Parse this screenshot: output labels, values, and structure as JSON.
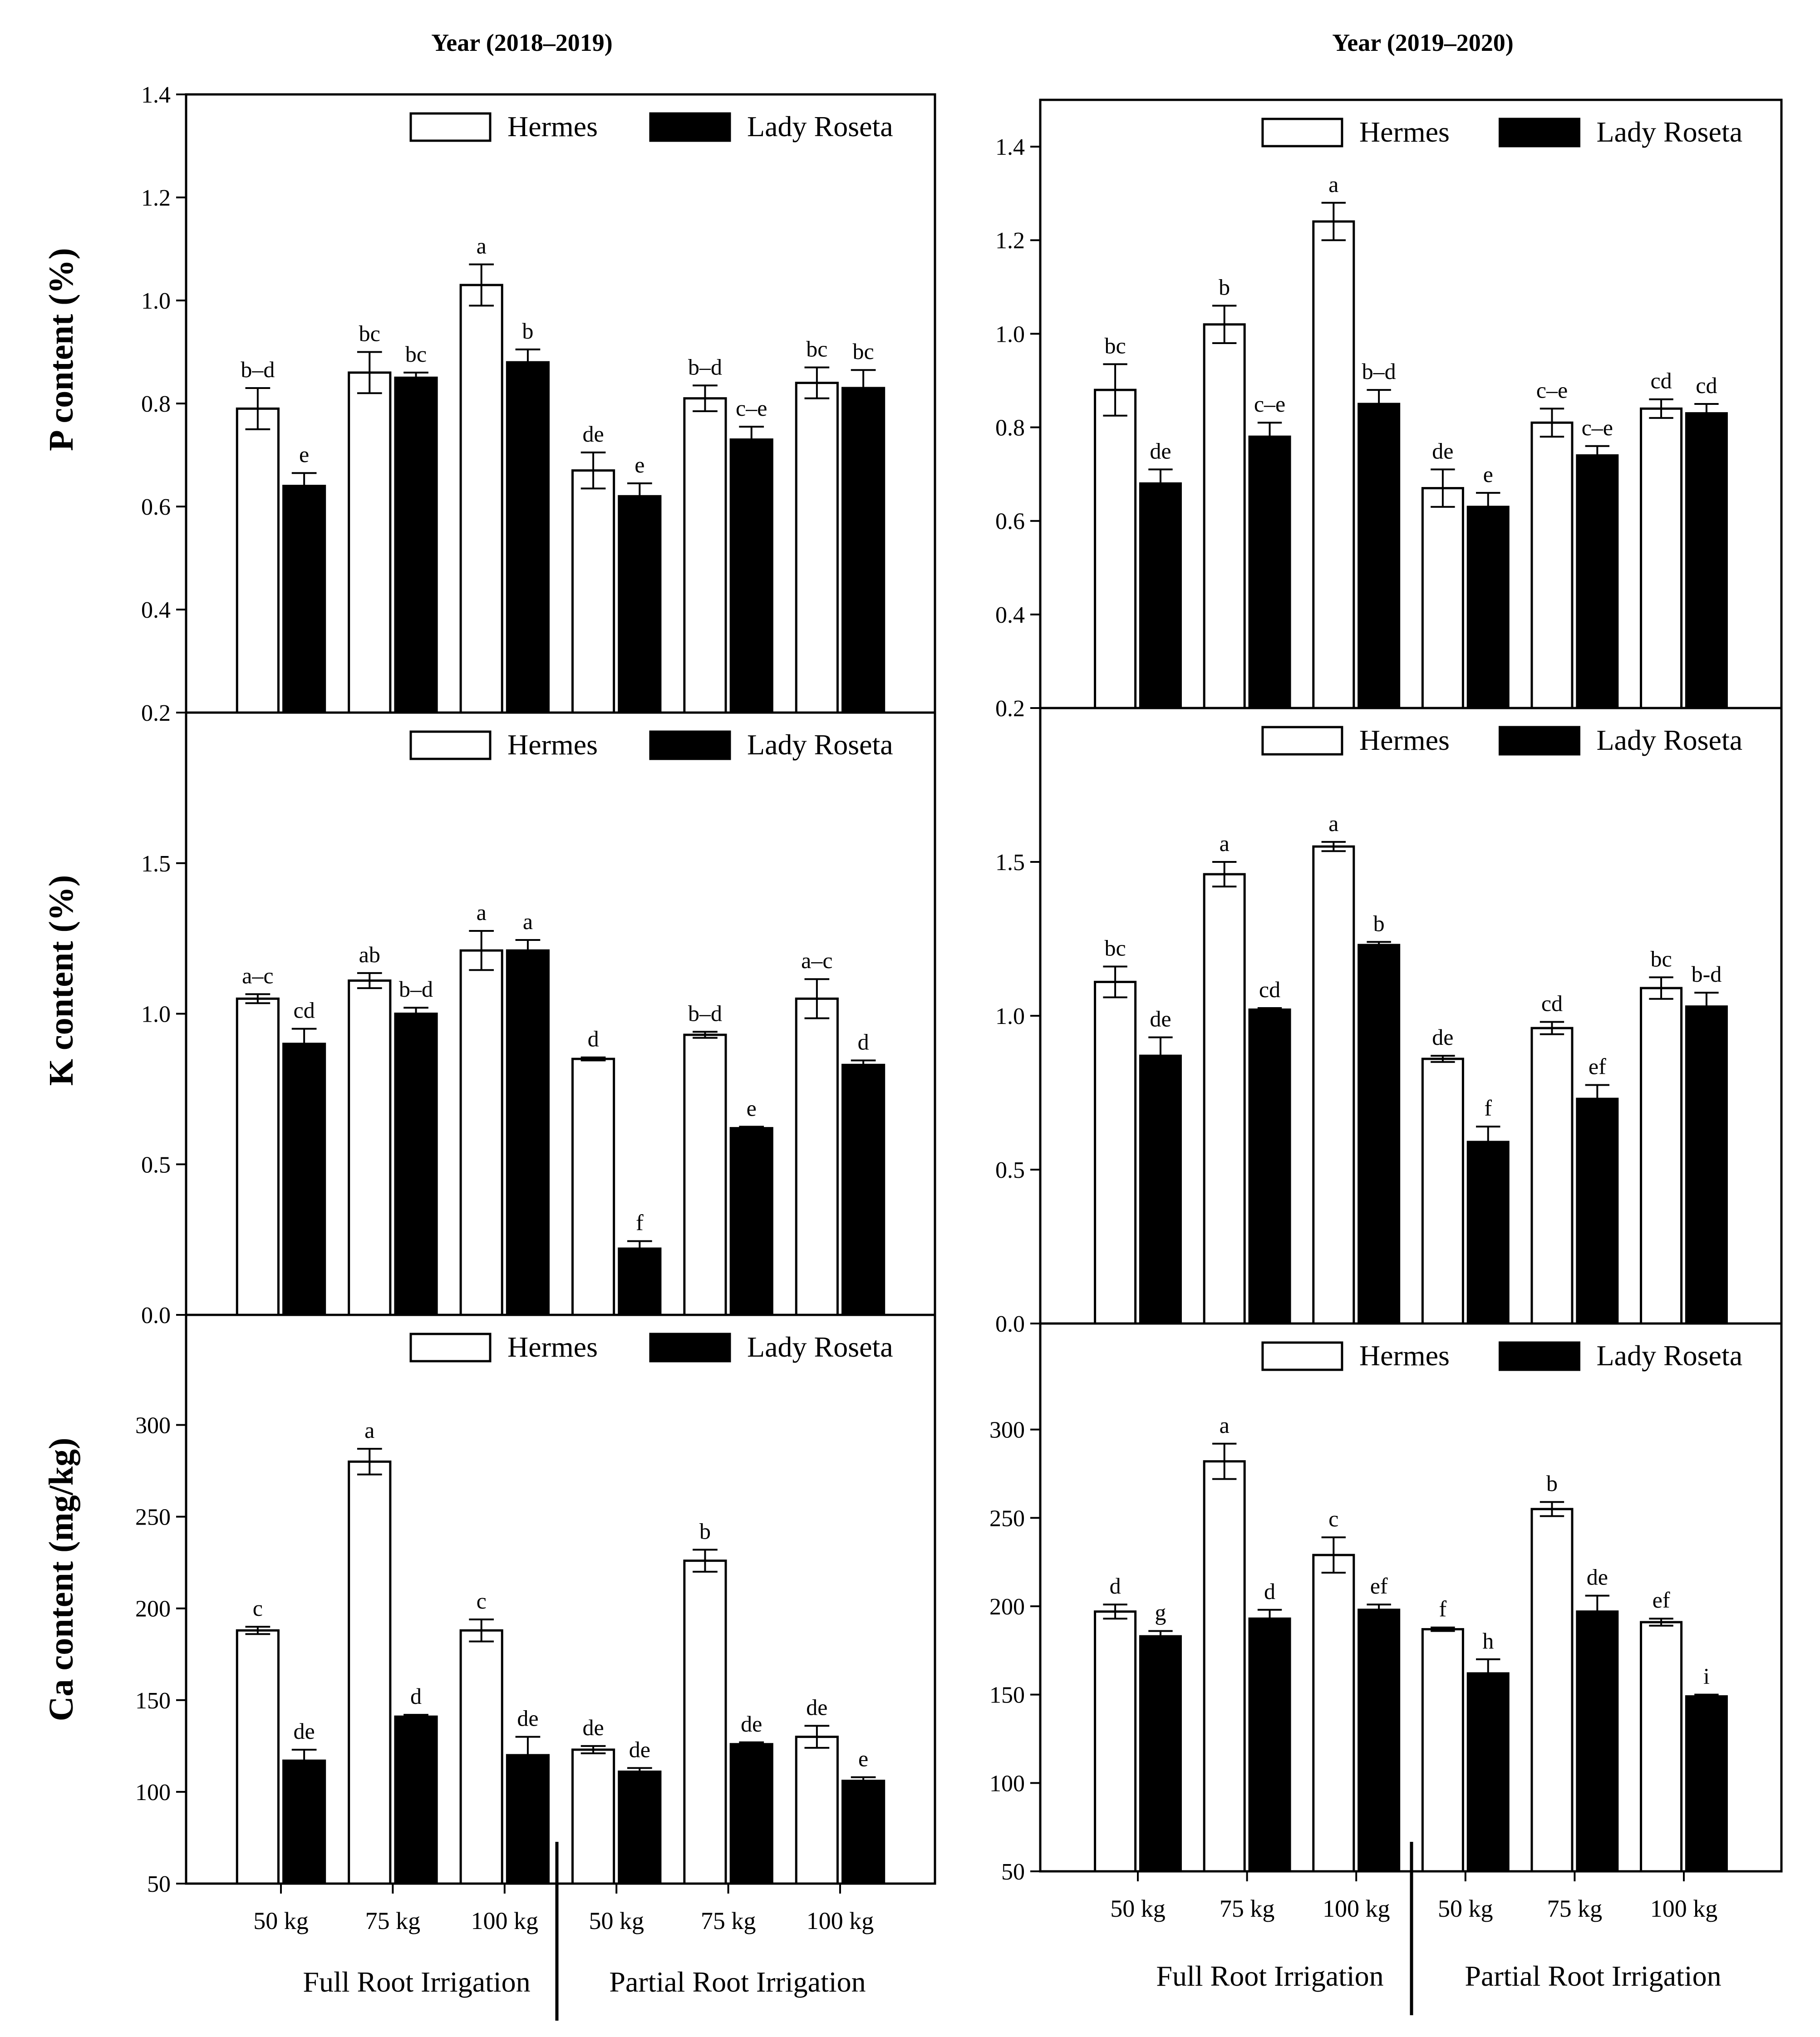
{
  "chart_data": {
    "type": "bar",
    "column_titles": [
      "Year (2018–2019)",
      "Year (2019–2020)"
    ],
    "row_ylabels": [
      "P content (%)",
      "K content (%)",
      "Ca content (mg/kg)"
    ],
    "series_names": [
      "Hermes",
      "Lady Roseta"
    ],
    "series_colors": [
      "#ffffff",
      "#000000"
    ],
    "categories": [
      "50 kg",
      "75 kg",
      "100 kg",
      "50 kg",
      "75 kg",
      "100 kg"
    ],
    "groups": [
      "Full Root Irrigation",
      "Partial Root Irrigation"
    ],
    "panels": [
      {
        "row": 0,
        "col": 0,
        "ylim": [
          0.2,
          1.4
        ],
        "yticks": [
          "0.2",
          "0.4",
          "0.6",
          "0.8",
          "1.0",
          "1.2",
          "1.4"
        ],
        "hermes": [
          0.79,
          0.86,
          1.03,
          0.67,
          0.81,
          0.84
        ],
        "hermes_err": [
          0.04,
          0.04,
          0.04,
          0.035,
          0.025,
          0.03
        ],
        "hermes_sig": [
          "b–d",
          "bc",
          "a",
          "de",
          "b–d",
          "bc"
        ],
        "lady": [
          0.64,
          0.85,
          0.88,
          0.62,
          0.73,
          0.83
        ],
        "lady_err": [
          0.025,
          0.01,
          0.025,
          0.025,
          0.025,
          0.035
        ],
        "lady_sig": [
          "e",
          "bc",
          "b",
          "e",
          "c–e",
          "bc"
        ]
      },
      {
        "row": 0,
        "col": 1,
        "ylim": [
          0.2,
          1.5
        ],
        "yticks": [
          "0.2",
          "0.4",
          "0.6",
          "0.8",
          "1.0",
          "1.2",
          "1.4"
        ],
        "hermes": [
          0.88,
          1.02,
          1.24,
          0.67,
          0.81,
          0.84
        ],
        "hermes_err": [
          0.055,
          0.04,
          0.04,
          0.04,
          0.03,
          0.02
        ],
        "hermes_sig": [
          "bc",
          "b",
          "a",
          "de",
          "c–e",
          "cd"
        ],
        "lady": [
          0.68,
          0.78,
          0.85,
          0.63,
          0.74,
          0.83
        ],
        "lady_err": [
          0.03,
          0.03,
          0.03,
          0.03,
          0.02,
          0.02
        ],
        "lady_sig": [
          "de",
          "c–e",
          "b–d",
          "e",
          "c–e",
          "cd"
        ]
      },
      {
        "row": 1,
        "col": 0,
        "ylim": [
          0.0,
          2.0
        ],
        "yticks": [
          "0.0",
          "0.5",
          "1.0",
          "1.5"
        ],
        "hermes": [
          1.05,
          1.11,
          1.21,
          0.85,
          0.93,
          1.05
        ],
        "hermes_err": [
          0.015,
          0.025,
          0.065,
          0.005,
          0.01,
          0.065
        ],
        "hermes_sig": [
          "a–c",
          "ab",
          "a",
          "d",
          "b–d",
          "a–c"
        ],
        "lady": [
          0.9,
          1.0,
          1.21,
          0.22,
          0.62,
          0.83
        ],
        "lady_err": [
          0.05,
          0.02,
          0.035,
          0.025,
          0.005,
          0.015
        ],
        "lady_sig": [
          "cd",
          "b–d",
          "a",
          "f",
          "e",
          "d"
        ]
      },
      {
        "row": 1,
        "col": 1,
        "ylim": [
          0.0,
          2.0
        ],
        "yticks": [
          "0.0",
          "0.5",
          "1.0",
          "1.5"
        ],
        "hermes": [
          1.11,
          1.46,
          1.55,
          0.86,
          0.96,
          1.09
        ],
        "hermes_err": [
          0.05,
          0.04,
          0.015,
          0.01,
          0.02,
          0.035
        ],
        "hermes_sig": [
          "bc",
          "a",
          "a",
          "de",
          "cd",
          "bc"
        ],
        "lady": [
          0.87,
          1.02,
          1.23,
          0.59,
          0.73,
          1.03
        ],
        "lady_err": [
          0.06,
          0.005,
          0.01,
          0.05,
          0.045,
          0.045
        ],
        "lady_sig": [
          "de",
          "cd",
          "b",
          "f",
          "ef",
          "b-d"
        ]
      },
      {
        "row": 2,
        "col": 0,
        "ylim": [
          50,
          360
        ],
        "yticks": [
          "50",
          "100",
          "150",
          "200",
          "250",
          "300"
        ],
        "hermes": [
          188,
          280,
          188,
          123,
          226,
          130
        ],
        "hermes_err": [
          2,
          7,
          6,
          2,
          6,
          6
        ],
        "hermes_sig": [
          "c",
          "a",
          "c",
          "de",
          "b",
          "de"
        ],
        "lady": [
          117,
          141,
          120,
          111,
          126,
          106
        ],
        "lady_err": [
          6,
          1,
          10,
          2,
          1,
          2
        ],
        "lady_sig": [
          "de",
          "d",
          "de",
          "de",
          "de",
          "e"
        ]
      },
      {
        "row": 2,
        "col": 1,
        "ylim": [
          50,
          360
        ],
        "yticks": [
          "50",
          "100",
          "150",
          "200",
          "250",
          "300"
        ],
        "hermes": [
          197,
          282,
          229,
          187,
          255,
          191
        ],
        "hermes_err": [
          4,
          10,
          10,
          1,
          4,
          2
        ],
        "hermes_sig": [
          "d",
          "a",
          "c",
          "f",
          "b",
          "ef"
        ],
        "lady": [
          183,
          193,
          198,
          162,
          197,
          149
        ],
        "lady_err": [
          3,
          5,
          3,
          8,
          9,
          1
        ],
        "lady_sig": [
          "g",
          "d",
          "ef",
          "h",
          "de",
          "i"
        ]
      }
    ]
  }
}
